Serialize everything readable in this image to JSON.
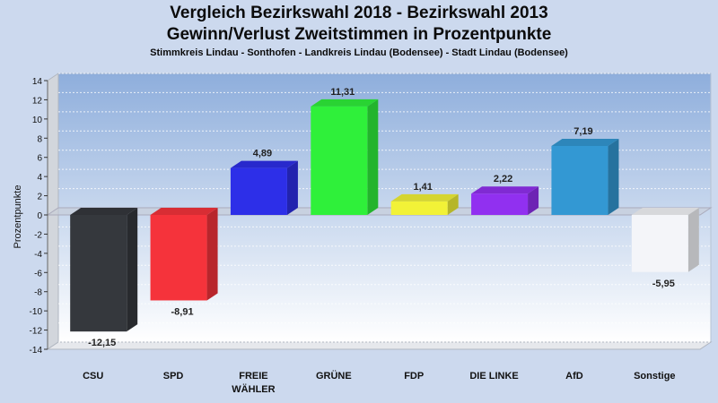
{
  "chart_data": {
    "type": "bar",
    "title": "Vergleich Bezirkswahl 2018 - Bezirkswahl 2013",
    "subtitle": "Gewinn/Verlust Zweitstimmen in Prozentpunkte",
    "region": "Stimmkreis Lindau - Sonthofen - Landkreis Lindau (Bodensee) - Stadt Lindau (Bodensee)",
    "xlabel": "",
    "ylabel": "Prozentpunkte",
    "ylim": [
      -14,
      14
    ],
    "yticks": [
      "14",
      "12",
      "10",
      "8",
      "6",
      "4",
      "2",
      "0",
      "-2",
      "-4",
      "-6",
      "-8",
      "-10",
      "-12",
      "-14"
    ],
    "grid": true,
    "categories": [
      {
        "label": "CSU",
        "label2": ""
      },
      {
        "label": "SPD",
        "label2": ""
      },
      {
        "label": "FREIE",
        "label2": "WÄHLER"
      },
      {
        "label": "GRÜNE",
        "label2": ""
      },
      {
        "label": "FDP",
        "label2": ""
      },
      {
        "label": "DIE LINKE",
        "label2": ""
      },
      {
        "label": "AfD",
        "label2": ""
      },
      {
        "label": "Sonstige",
        "label2": ""
      }
    ],
    "values": [
      -12.15,
      -8.91,
      4.89,
      11.31,
      1.41,
      2.22,
      7.19,
      -5.95
    ],
    "value_labels": [
      "-12,15",
      "-8,91",
      "4,89",
      "11,31",
      "1,41",
      "2,22",
      "7,19",
      "-5,95"
    ],
    "colors": [
      "#35383d",
      "#f5333b",
      "#2d2fe8",
      "#2ff03a",
      "#f2f237",
      "#9130f0",
      "#3398d3",
      "#f4f5f9"
    ]
  }
}
